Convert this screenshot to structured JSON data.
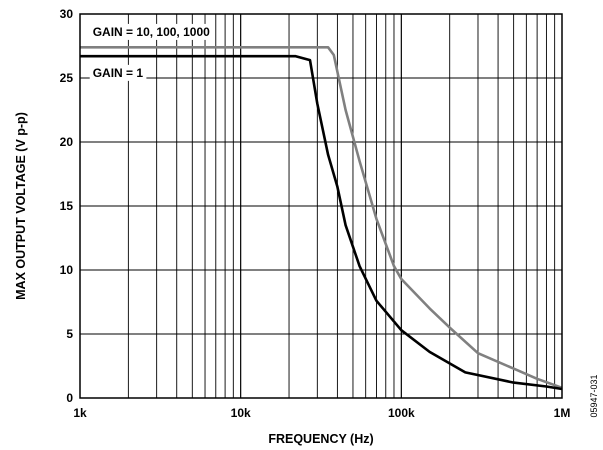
{
  "chart_data": {
    "type": "line",
    "title": "",
    "xlabel": "FREQUENCY (Hz)",
    "ylabel": "MAX OUTPUT VOLTAGE (V p-p)",
    "x_scale": "log",
    "xlim": [
      1000,
      1000000
    ],
    "ylim": [
      0,
      30
    ],
    "x_ticks": [
      {
        "value": 1000,
        "label": "1k"
      },
      {
        "value": 10000,
        "label": "10k"
      },
      {
        "value": 100000,
        "label": "100k"
      },
      {
        "value": 1000000,
        "label": "1M"
      }
    ],
    "y_ticks": [
      {
        "value": 0,
        "label": "0"
      },
      {
        "value": 5,
        "label": "5"
      },
      {
        "value": 10,
        "label": "10"
      },
      {
        "value": 15,
        "label": "15"
      },
      {
        "value": 20,
        "label": "20"
      },
      {
        "value": 25,
        "label": "25"
      },
      {
        "value": 30,
        "label": "30"
      }
    ],
    "grid": true,
    "series": [
      {
        "color": "#808080",
        "x": [
          1000,
          20000,
          35000,
          38000,
          45000,
          55000,
          70000,
          90000,
          100000,
          150000,
          200000,
          300000,
          500000,
          700000,
          1000000
        ],
        "y": [
          27.4,
          27.4,
          27.4,
          26.8,
          22.5,
          18.5,
          14.0,
          10.3,
          9.3,
          7.0,
          5.5,
          3.5,
          2.3,
          1.5,
          0.8
        ]
      },
      {
        "color": "#000000",
        "x": [
          1000,
          22000,
          27000,
          30000,
          35000,
          40000,
          45000,
          55000,
          70000,
          100000,
          150000,
          250000,
          500000,
          800000,
          1000000
        ],
        "y": [
          26.7,
          26.7,
          26.4,
          23.0,
          19.0,
          16.5,
          13.5,
          10.3,
          7.6,
          5.3,
          3.6,
          2.0,
          1.2,
          0.9,
          0.7
        ]
      }
    ],
    "annotations": [
      {
        "text": "GAIN = 10, 100, 1000",
        "x": 1200,
        "y": 28.6
      },
      {
        "text": "GAIN = 1",
        "x": 1200,
        "y": 25.4
      }
    ]
  },
  "figure_id": "05947-031"
}
